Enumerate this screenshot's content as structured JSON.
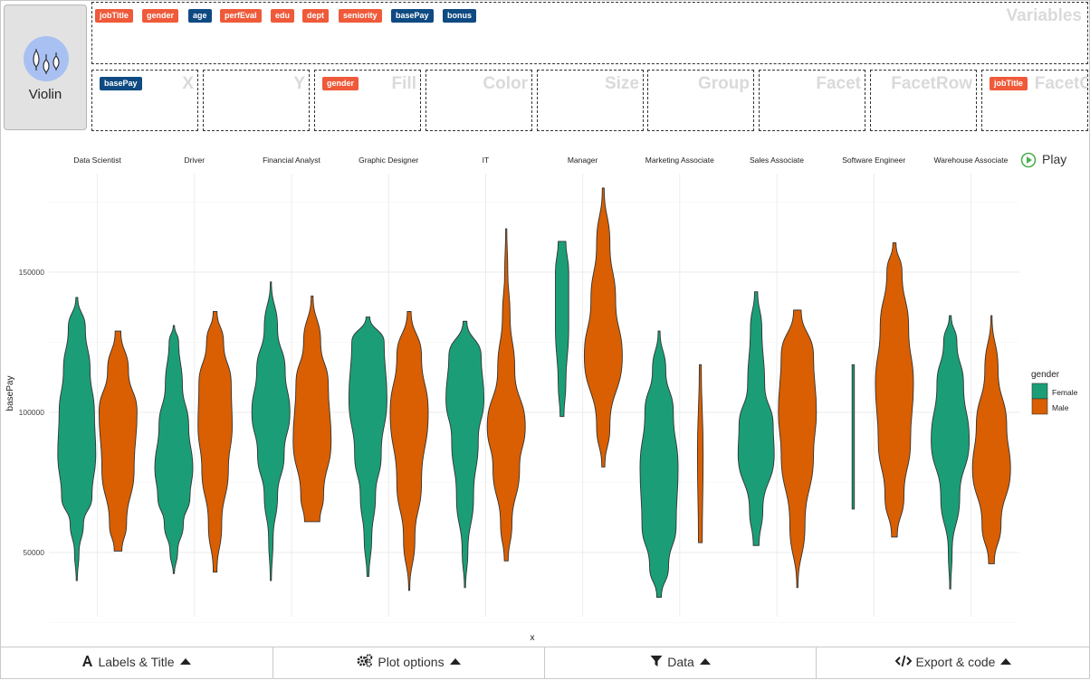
{
  "geom": {
    "label": "Violin",
    "icon": "violin-icon"
  },
  "variables": {
    "title": "Variables",
    "chips": [
      {
        "name": "jobTitle",
        "kind": "nominal"
      },
      {
        "name": "gender",
        "kind": "nominal"
      },
      {
        "name": "age",
        "kind": "numeric"
      },
      {
        "name": "perfEval",
        "kind": "nominal"
      },
      {
        "name": "edu",
        "kind": "nominal"
      },
      {
        "name": "dept",
        "kind": "nominal"
      },
      {
        "name": "seniority",
        "kind": "nominal"
      },
      {
        "name": "basePay",
        "kind": "numeric"
      },
      {
        "name": "bonus",
        "kind": "numeric"
      }
    ]
  },
  "drop_zones": [
    {
      "title": "X",
      "chip": "basePay",
      "kind": "numeric"
    },
    {
      "title": "Y",
      "chip": "",
      "kind": ""
    },
    {
      "title": "Fill",
      "chip": "gender",
      "kind": "nominal"
    },
    {
      "title": "Color",
      "chip": "",
      "kind": ""
    },
    {
      "title": "Size",
      "chip": "",
      "kind": ""
    },
    {
      "title": "Group",
      "chip": "",
      "kind": ""
    },
    {
      "title": "Facet",
      "chip": "",
      "kind": ""
    },
    {
      "title": "FacetRow",
      "chip": "",
      "kind": ""
    },
    {
      "title": "FacetCol",
      "chip": "jobTitle",
      "kind": "nominal"
    }
  ],
  "play": {
    "label": "Play"
  },
  "chart_data": {
    "type": "violin",
    "xlabel": "x",
    "ylabel": "basePay",
    "yticks": [
      50000,
      100000,
      150000
    ],
    "ylim": [
      24000,
      181000
    ],
    "facets": [
      "Data Scientist",
      "Driver",
      "Financial Analyst",
      "Graphic Designer",
      "IT",
      "Manager",
      "Marketing Associate",
      "Sales Associate",
      "Software Engineer",
      "Warehouse Associate"
    ],
    "legend": {
      "title": "gender",
      "position": "right",
      "entries": [
        {
          "name": "Female",
          "color": "#1b9e77"
        },
        {
          "name": "Male",
          "color": "#d95f02"
        }
      ]
    },
    "series": [
      {
        "name": "Female",
        "violins": [
          {
            "min": 40000,
            "max": 141000,
            "shape": [
              [
                40000,
                0.02
              ],
              [
                50000,
                0.12
              ],
              [
                60000,
                0.35
              ],
              [
                70000,
                0.8
              ],
              [
                85000,
                1
              ],
              [
                100000,
                0.93
              ],
              [
                115000,
                0.7
              ],
              [
                130000,
                0.45
              ],
              [
                141000,
                0.05
              ]
            ]
          },
          {
            "min": 42500,
            "max": 131000,
            "shape": [
              [
                42500,
                0.02
              ],
              [
                50000,
                0.2
              ],
              [
                60000,
                0.5
              ],
              [
                70000,
                0.85
              ],
              [
                80000,
                1
              ],
              [
                95000,
                0.78
              ],
              [
                110000,
                0.45
              ],
              [
                125000,
                0.25
              ],
              [
                131000,
                0.03
              ]
            ]
          },
          {
            "min": 40000,
            "max": 146500,
            "shape": [
              [
                40000,
                0.02
              ],
              [
                55000,
                0.12
              ],
              [
                70000,
                0.35
              ],
              [
                85000,
                0.7
              ],
              [
                100000,
                1
              ],
              [
                115000,
                0.75
              ],
              [
                130000,
                0.35
              ],
              [
                146500,
                0.02
              ]
            ]
          },
          {
            "min": 41500,
            "max": 134000,
            "shape": [
              [
                41500,
                0.05
              ],
              [
                55000,
                0.2
              ],
              [
                70000,
                0.4
              ],
              [
                85000,
                0.7
              ],
              [
                105000,
                1
              ],
              [
                125000,
                0.85
              ],
              [
                134000,
                0.1
              ]
            ]
          },
          {
            "min": 37500,
            "max": 132500,
            "shape": [
              [
                37500,
                0.02
              ],
              [
                50000,
                0.15
              ],
              [
                70000,
                0.45
              ],
              [
                90000,
                0.7
              ],
              [
                105000,
                1
              ],
              [
                120000,
                0.85
              ],
              [
                132500,
                0.1
              ]
            ]
          },
          {
            "min": 98500,
            "max": 161000,
            "shape": [
              [
                98500,
                0.1
              ],
              [
                110000,
                0.2
              ],
              [
                130000,
                0.35
              ],
              [
                150000,
                0.35
              ],
              [
                161000,
                0.2
              ]
            ]
          },
          {
            "min": 34000,
            "max": 129000,
            "shape": [
              [
                34000,
                0.12
              ],
              [
                45000,
                0.5
              ],
              [
                60000,
                0.9
              ],
              [
                80000,
                1
              ],
              [
                100000,
                0.75
              ],
              [
                115000,
                0.35
              ],
              [
                129000,
                0.05
              ]
            ]
          },
          {
            "min": 52500,
            "max": 143000,
            "shape": [
              [
                52500,
                0.15
              ],
              [
                65000,
                0.35
              ],
              [
                85000,
                0.95
              ],
              [
                95000,
                0.9
              ],
              [
                110000,
                0.45
              ],
              [
                130000,
                0.3
              ],
              [
                143000,
                0.08
              ]
            ]
          },
          {
            "min": 65500,
            "max": 117000,
            "shape": [
              [
                65500,
                0.06
              ],
              [
                90000,
                0.06
              ],
              [
                117000,
                0.06
              ]
            ]
          },
          {
            "min": 37000,
            "max": 134500,
            "shape": [
              [
                37000,
                0.02
              ],
              [
                50000,
                0.1
              ],
              [
                70000,
                0.5
              ],
              [
                90000,
                1
              ],
              [
                110000,
                0.7
              ],
              [
                125000,
                0.35
              ],
              [
                134500,
                0.05
              ]
            ]
          }
        ]
      },
      {
        "name": "Male",
        "violins": [
          {
            "min": 50500,
            "max": 129000,
            "shape": [
              [
                50500,
                0.2
              ],
              [
                60000,
                0.45
              ],
              [
                80000,
                0.85
              ],
              [
                100000,
                1
              ],
              [
                115000,
                0.55
              ],
              [
                129000,
                0.15
              ]
            ]
          },
          {
            "min": 43000,
            "max": 136000,
            "shape": [
              [
                43000,
                0.1
              ],
              [
                60000,
                0.35
              ],
              [
                80000,
                0.7
              ],
              [
                95000,
                0.9
              ],
              [
                110000,
                0.85
              ],
              [
                125000,
                0.45
              ],
              [
                136000,
                0.1
              ]
            ]
          },
          {
            "min": 61000,
            "max": 141500,
            "shape": [
              [
                61000,
                0.4
              ],
              [
                70000,
                0.6
              ],
              [
                90000,
                1
              ],
              [
                110000,
                0.85
              ],
              [
                125000,
                0.45
              ],
              [
                141500,
                0.05
              ]
            ]
          },
          {
            "min": 36500,
            "max": 136000,
            "shape": [
              [
                36500,
                0.03
              ],
              [
                55000,
                0.3
              ],
              [
                75000,
                0.65
              ],
              [
                100000,
                1
              ],
              [
                120000,
                0.65
              ],
              [
                136000,
                0.1
              ]
            ]
          },
          {
            "min": 47000,
            "max": 165500,
            "shape": [
              [
                47000,
                0.1
              ],
              [
                60000,
                0.3
              ],
              [
                80000,
                0.7
              ],
              [
                95000,
                1
              ],
              [
                115000,
                0.45
              ],
              [
                135000,
                0.2
              ],
              [
                150000,
                0.08
              ],
              [
                165500,
                0.02
              ]
            ]
          },
          {
            "min": 80500,
            "max": 180000,
            "shape": [
              [
                80500,
                0.08
              ],
              [
                95000,
                0.35
              ],
              [
                120000,
                1
              ],
              [
                140000,
                0.65
              ],
              [
                160000,
                0.35
              ],
              [
                180000,
                0.05
              ]
            ]
          },
          {
            "min": 53500,
            "max": 117000,
            "shape": [
              [
                53500,
                0.1
              ],
              [
                85000,
                0.15
              ],
              [
                117000,
                0.05
              ]
            ]
          },
          {
            "min": 37500,
            "max": 136500,
            "shape": [
              [
                37500,
                0.03
              ],
              [
                60000,
                0.4
              ],
              [
                85000,
                0.85
              ],
              [
                100000,
                1
              ],
              [
                120000,
                0.85
              ],
              [
                136500,
                0.2
              ]
            ]
          },
          {
            "min": 55500,
            "max": 160500,
            "shape": [
              [
                55500,
                0.15
              ],
              [
                70000,
                0.5
              ],
              [
                90000,
                0.85
              ],
              [
                110000,
                1
              ],
              [
                130000,
                0.75
              ],
              [
                150000,
                0.4
              ],
              [
                160500,
                0.08
              ]
            ]
          },
          {
            "min": 46000,
            "max": 134500,
            "shape": [
              [
                46000,
                0.15
              ],
              [
                60000,
                0.5
              ],
              [
                80000,
                1
              ],
              [
                95000,
                0.8
              ],
              [
                115000,
                0.35
              ],
              [
                134500,
                0.02
              ]
            ]
          }
        ]
      }
    ]
  },
  "bottom_tabs": [
    {
      "label": "Labels & Title",
      "icon": "font-icon"
    },
    {
      "label": "Plot options",
      "icon": "gears-icon"
    },
    {
      "label": "Data",
      "icon": "filter-icon"
    },
    {
      "label": "Export & code",
      "icon": "code-icon"
    }
  ]
}
